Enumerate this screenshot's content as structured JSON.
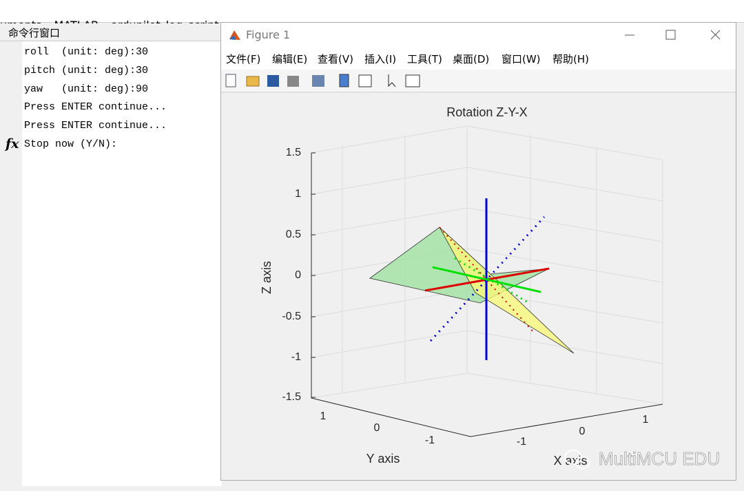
{
  "breadcrumb": [
    "uments",
    "MATLAB",
    "ardupilot_log_script"
  ],
  "command_window": {
    "title": "命令行窗口",
    "lines": [
      "roll  (unit: deg):30",
      "pitch (unit: deg):30",
      "yaw   (unit: deg):90",
      "Press ENTER continue...",
      "Press ENTER continue..."
    ],
    "prompt_icon": "fx",
    "prompt": "Stop now (Y/N):"
  },
  "figure": {
    "title": "Figure 1",
    "menu": [
      "文件(F)",
      "编辑(E)",
      "查看(V)",
      "插入(I)",
      "工具(T)",
      "桌面(D)",
      "窗口(W)",
      "帮助(H)"
    ],
    "plot": {
      "title": "Rotation Z-Y-X",
      "xlabel": "X axis",
      "ylabel": "Y axis",
      "zlabel": "Z axis",
      "zticks": [
        "1.5",
        "1",
        "0.5",
        "0",
        "-0.5",
        "-1",
        "-1.5"
      ],
      "yticks": [
        "1",
        "0",
        "-1"
      ],
      "xticks": [
        "-1",
        "0",
        "1"
      ]
    }
  },
  "watermark": "MultiMCU EDU"
}
